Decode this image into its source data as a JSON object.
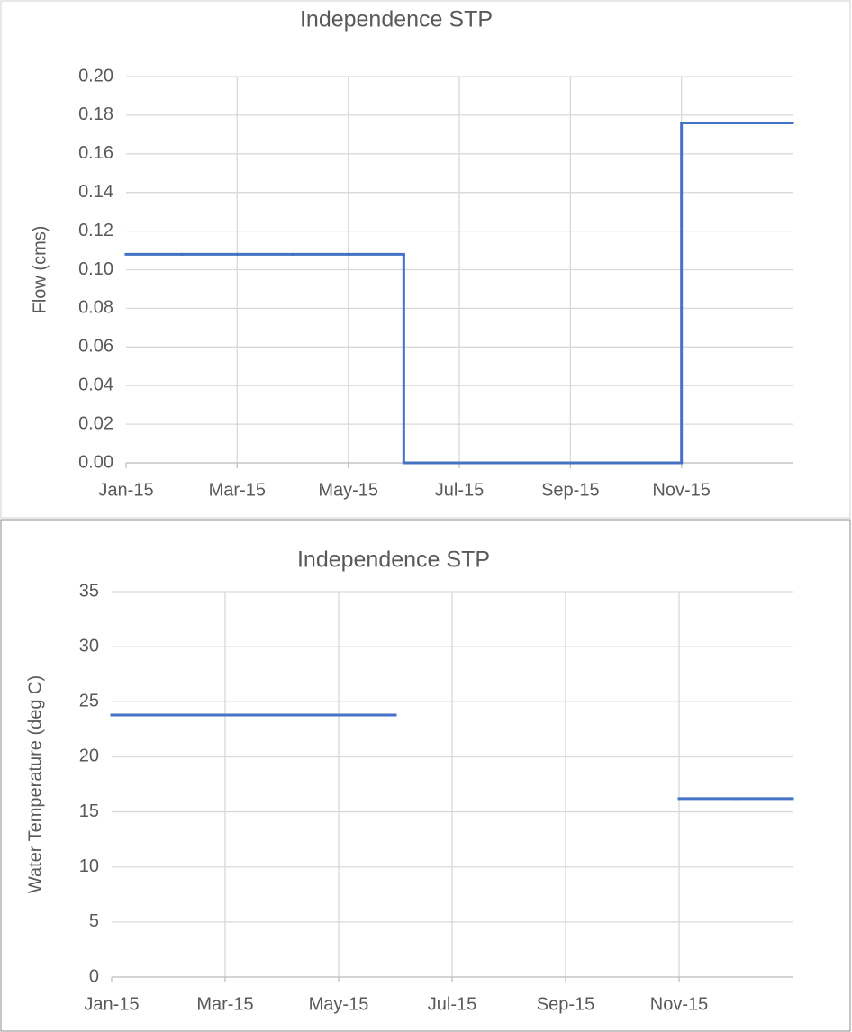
{
  "chart_data": [
    {
      "type": "line",
      "title": "Independence STP",
      "y_label": "Flow (cms)",
      "categories": [
        "Jan-15",
        null,
        "Mar-15",
        null,
        "May-15",
        null,
        "Jul-15",
        null,
        "Sep-15",
        null,
        "Nov-15",
        null
      ],
      "series": [
        {
          "color": "#4472c4",
          "values": [
            0.108,
            0.108,
            0.108,
            0.108,
            0.108,
            0,
            0,
            0,
            0,
            0,
            0.176,
            0.176
          ]
        }
      ],
      "step": "post",
      "ylim": [
        0,
        0.2
      ],
      "yticks": [
        {
          "value": 0,
          "label": "0.00"
        },
        {
          "value": 0.02,
          "label": "0.02"
        },
        {
          "value": 0.04,
          "label": "0.04"
        },
        {
          "value": 0.06,
          "label": "0.06"
        },
        {
          "value": 0.08,
          "label": "0.08"
        },
        {
          "value": 0.1,
          "label": "0.10"
        },
        {
          "value": 0.12,
          "label": "0.12"
        },
        {
          "value": 0.14,
          "label": "0.14"
        },
        {
          "value": 0.16,
          "label": "0.16"
        },
        {
          "value": 0.18,
          "label": "0.18"
        },
        {
          "value": 0.2,
          "label": "0.20"
        }
      ],
      "grid": true
    },
    {
      "type": "line",
      "title": "Independence STP",
      "y_label": "Water Temperature (deg C)",
      "categories": [
        "Jan-15",
        null,
        "Mar-15",
        null,
        "May-15",
        null,
        "Jul-15",
        null,
        "Sep-15",
        null,
        "Nov-15",
        null
      ],
      "series": [
        {
          "color": "#4472c4",
          "values": [
            23.8,
            23.8,
            23.8,
            23.8,
            23.8,
            null,
            null,
            null,
            null,
            null,
            16.2,
            16.2
          ]
        }
      ],
      "step": "post",
      "ylim": [
        0,
        35
      ],
      "yticks": [
        0,
        5,
        10,
        15,
        20,
        25,
        30,
        35
      ],
      "grid": true
    }
  ]
}
